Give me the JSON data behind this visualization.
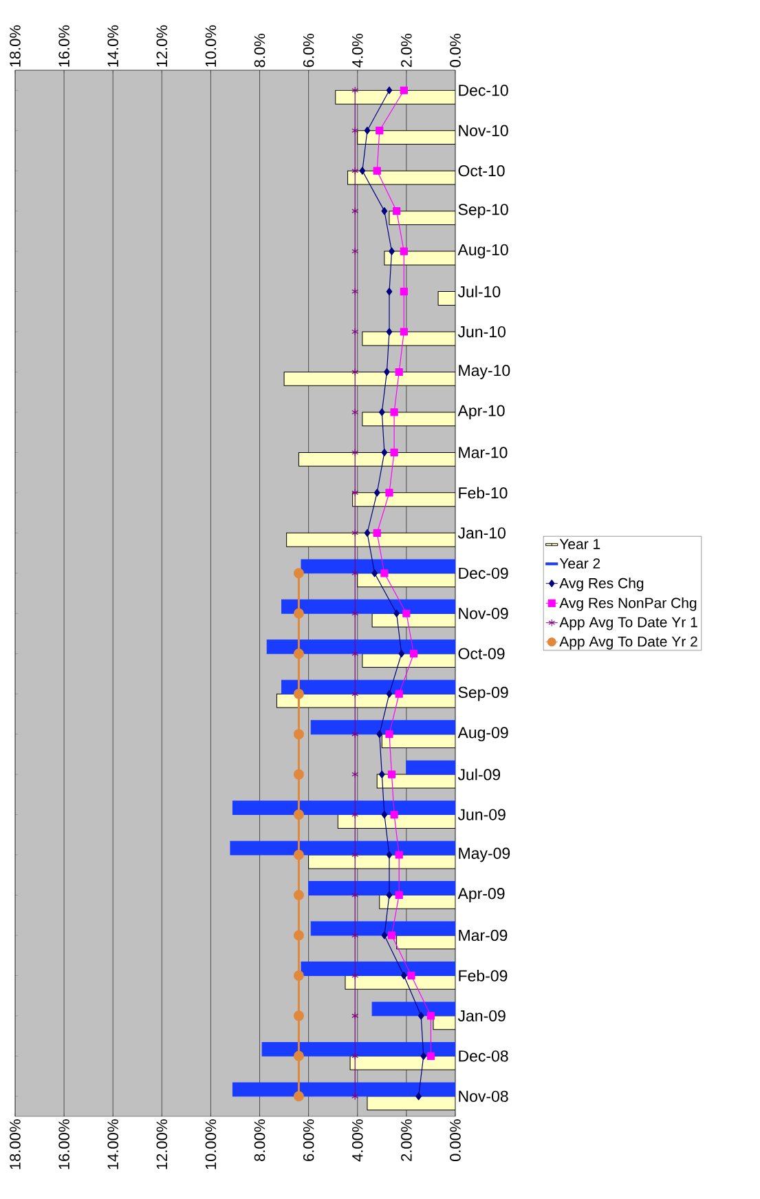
{
  "chart_data": {
    "type": "bar",
    "orientation": "horizontal",
    "categories": [
      "Dec-10",
      "Nov-10",
      "Oct-10",
      "Sep-10",
      "Aug-10",
      "Jul-10",
      "Jun-10",
      "May-10",
      "Apr-10",
      "Mar-10",
      "Feb-10",
      "Jan-10",
      "Dec-09",
      "Nov-09",
      "Oct-09",
      "Sep-09",
      "Aug-09",
      "Jul-09",
      "Jun-09",
      "May-09",
      "Apr-09",
      "Mar-09",
      "Feb-09",
      "Jan-09",
      "Dec-08",
      "Nov-08"
    ],
    "series": [
      {
        "name": "Year 1",
        "color": "#ffffc0",
        "values": [
          4.9,
          4.0,
          4.4,
          2.7,
          2.9,
          0.7,
          3.8,
          7.0,
          3.8,
          6.4,
          4.2,
          6.9,
          4.0,
          3.4,
          3.8,
          7.3,
          3.0,
          3.2,
          4.8,
          6.0,
          3.1,
          2.4,
          4.5,
          0.9,
          4.3,
          3.6
        ]
      },
      {
        "name": "Year 2",
        "color": "#1a3cff",
        "values": [
          null,
          null,
          null,
          null,
          null,
          null,
          null,
          null,
          null,
          null,
          null,
          null,
          6.3,
          7.1,
          7.7,
          7.1,
          5.9,
          2.0,
          9.1,
          9.2,
          6.0,
          5.9,
          6.3,
          3.4,
          7.9,
          9.1
        ]
      },
      {
        "name": "Avg Res Chg",
        "type": "line",
        "color": "#000080",
        "marker": "diamond",
        "values": [
          2.7,
          3.6,
          3.8,
          2.9,
          2.6,
          2.7,
          2.7,
          2.8,
          3.0,
          2.9,
          3.2,
          3.6,
          3.3,
          2.4,
          2.2,
          2.7,
          3.1,
          3.0,
          2.9,
          2.7,
          2.7,
          2.9,
          2.1,
          1.4,
          1.3,
          1.5
        ]
      },
      {
        "name": "Avg Res NonPar Chg",
        "type": "line",
        "color": "#ff00ff",
        "marker": "square",
        "values": [
          2.1,
          3.1,
          3.2,
          2.4,
          2.1,
          2.1,
          2.1,
          2.3,
          2.5,
          2.5,
          2.7,
          3.2,
          2.9,
          2.0,
          1.7,
          2.3,
          2.7,
          2.6,
          2.5,
          2.3,
          2.3,
          2.6,
          1.8,
          1.0,
          1.0,
          null
        ]
      },
      {
        "name": "App Avg To Date Yr 1",
        "type": "line",
        "color": "#800080",
        "marker": "cross",
        "values": [
          4.1,
          4.1,
          4.1,
          4.1,
          4.1,
          4.1,
          4.1,
          4.1,
          4.1,
          4.1,
          4.1,
          4.1,
          4.1,
          4.1,
          4.1,
          4.1,
          4.1,
          4.1,
          4.1,
          4.1,
          4.1,
          4.1,
          4.1,
          4.1,
          4.1,
          4.1
        ]
      },
      {
        "name": "App Avg To Date Yr 2",
        "type": "line",
        "color": "#e0883c",
        "marker": "circle",
        "values": [
          null,
          null,
          null,
          null,
          null,
          null,
          null,
          null,
          null,
          null,
          null,
          null,
          6.4,
          6.4,
          6.4,
          6.4,
          6.4,
          6.4,
          6.4,
          6.4,
          6.4,
          6.4,
          6.4,
          6.4,
          6.4,
          6.4
        ]
      }
    ],
    "xlim": [
      18,
      0
    ],
    "xticks": [
      {
        "value": 0,
        "label": "0.00%"
      },
      {
        "value": 2,
        "label": "2.00%"
      },
      {
        "value": 4,
        "label": "4.00%"
      },
      {
        "value": 6,
        "label": "6.00%"
      },
      {
        "value": 8,
        "label": "8.00%"
      },
      {
        "value": 10,
        "label": "10.00%"
      },
      {
        "value": 12,
        "label": "12.00%"
      },
      {
        "value": 14,
        "label": "14.00%"
      },
      {
        "value": 16,
        "label": "16.00%"
      },
      {
        "value": 18,
        "label": "18.00%"
      }
    ],
    "x2lim": [
      18,
      0
    ],
    "x2ticks": [
      {
        "value": 0,
        "label": "0.0%"
      },
      {
        "value": 2,
        "label": "2.0%"
      },
      {
        "value": 4,
        "label": "4.0%"
      },
      {
        "value": 6,
        "label": "6.0%"
      },
      {
        "value": 8,
        "label": "8.0%"
      },
      {
        "value": 10,
        "label": "10.0%"
      },
      {
        "value": 12,
        "label": "12.0%"
      },
      {
        "value": 14,
        "label": "14.0%"
      },
      {
        "value": 16,
        "label": "16.0%"
      },
      {
        "value": 18,
        "label": "18.0%"
      }
    ],
    "grid": "x",
    "legend": "right"
  }
}
